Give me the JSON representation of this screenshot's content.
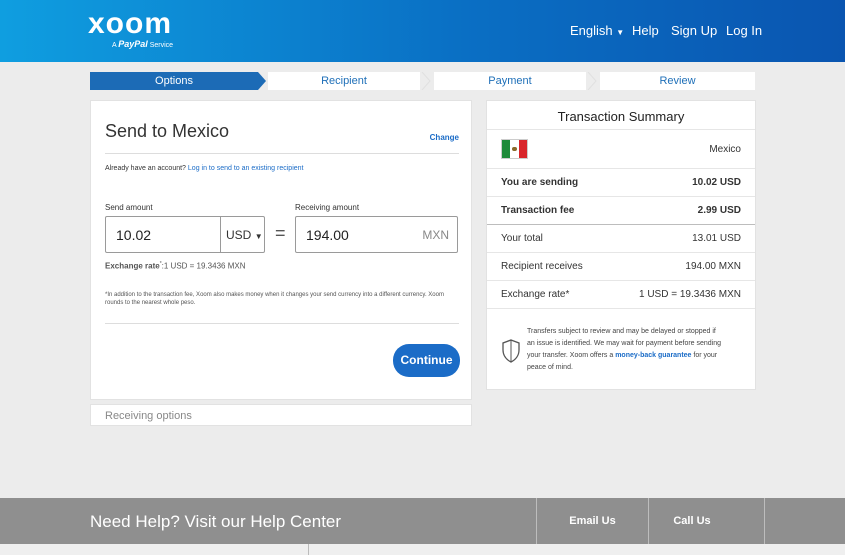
{
  "header": {
    "brand": "xoom",
    "tagline_prefix": "A",
    "tagline_brand": "PayPal",
    "tagline_suffix": "Service",
    "nav": {
      "language": "English",
      "help": "Help",
      "signup": "Sign Up",
      "login": "Log In"
    }
  },
  "steps": [
    "Options",
    "Recipient",
    "Payment",
    "Review"
  ],
  "send": {
    "title": "Send to Mexico",
    "change": "Change",
    "account_prefix": "Already have an account?",
    "account_link": "Log in to send to an existing recipient",
    "send_amount_label": "Send amount",
    "send_amount_value": "10.02",
    "send_currency": "USD",
    "receive_amount_label": "Receiving amount",
    "receive_amount_value": "194.00",
    "receive_currency": "MXN",
    "equals": "=",
    "rate_label": "Exchange rate",
    "rate_value": ":1 USD = 19.3436 MXN",
    "note": "*In addition to the transaction fee, Xoom also makes money when it changes your send currency into a different currency. Xoom rounds to the nearest whole peso.",
    "continue": "Continue",
    "receiving_options": "Receiving options"
  },
  "summary": {
    "title": "Transaction Summary",
    "country": "Mexico",
    "rows": [
      {
        "label": "You are sending",
        "value": "10.02 USD",
        "bold": true
      },
      {
        "label": "Transaction fee",
        "value": "2.99 USD",
        "bold": true
      },
      {
        "label": "Your total",
        "value": "13.01  USD",
        "bold": false
      },
      {
        "label": "Recipient receives",
        "value": "194.00 MXN",
        "bold": false
      },
      {
        "label": "Exchange rate*",
        "value": "1 USD = 19.3436 MXN",
        "bold": false
      }
    ],
    "notice_text": "Transfers subject to review and may be delayed or stopped if an issue is identified. We may wait for payment before sending your transfer. Xoom offers a",
    "notice_link": "money-back guarantee",
    "notice_end": "for your peace of mind."
  },
  "footer": {
    "help": "Need Help? Visit our Help Center",
    "email": "Email Us",
    "call": "Call Us"
  },
  "colors": {
    "accent": "#1b6cc7",
    "header_start": "#0f9ee0",
    "header_end": "#0a55b0",
    "footer": "#8f8f8f"
  }
}
